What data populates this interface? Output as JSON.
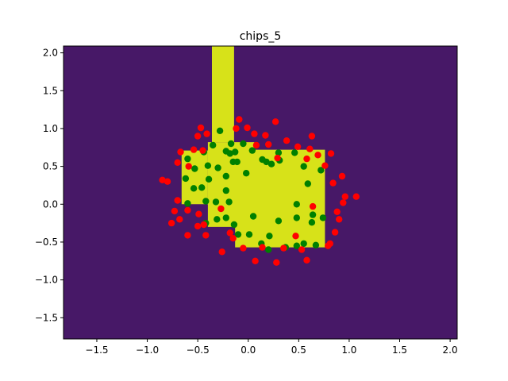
{
  "chart_data": {
    "type": "scatter",
    "title": "chips_5",
    "xlabel": "",
    "ylabel": "",
    "xlim": [
      -1.83,
      2.07
    ],
    "ylim": [
      -1.78,
      2.09
    ],
    "x_ticks": [
      -1.5,
      -1.0,
      -0.5,
      0.0,
      0.5,
      1.0,
      1.5,
      2.0
    ],
    "x_tick_labels": [
      "−1.5",
      "−1.0",
      "−0.5",
      "0.0",
      "0.5",
      "1.0",
      "1.5",
      "2.0"
    ],
    "y_ticks": [
      -1.5,
      -1.0,
      -0.5,
      0.0,
      0.5,
      1.0,
      1.5,
      2.0
    ],
    "y_tick_labels": [
      "−1.5",
      "−1.0",
      "−0.5",
      "0.0",
      "0.5",
      "1.0",
      "1.5",
      "2.0"
    ],
    "grid": false,
    "legend": "none",
    "background_color": "#471867",
    "region_color": "#d7e219",
    "decision_regions": [
      [
        [
          -0.36,
          2.09
        ],
        [
          -0.14,
          2.09
        ],
        [
          -0.14,
          0.82
        ],
        [
          -0.36,
          0.82
        ]
      ],
      [
        [
          -0.4,
          0.82
        ],
        [
          0.06,
          0.82
        ],
        [
          0.06,
          0.72
        ],
        [
          0.76,
          0.72
        ],
        [
          0.76,
          -0.57
        ],
        [
          -0.13,
          -0.57
        ],
        [
          -0.13,
          -0.3
        ],
        [
          -0.4,
          -0.3
        ]
      ],
      [
        [
          -0.66,
          0.71
        ],
        [
          -0.4,
          0.71
        ],
        [
          -0.4,
          0.0
        ],
        [
          -0.66,
          0.0
        ]
      ]
    ],
    "series": [
      {
        "color": "#008000",
        "points": [
          [
            -0.28,
            0.97
          ],
          [
            -0.22,
            0.7
          ],
          [
            -0.18,
            0.67
          ],
          [
            -0.13,
            0.69
          ],
          [
            -0.17,
            0.8
          ],
          [
            -0.05,
            0.8
          ],
          [
            0.04,
            0.71
          ],
          [
            -0.35,
            0.78
          ],
          [
            -0.6,
            0.6
          ],
          [
            -0.53,
            0.47
          ],
          [
            -0.44,
            0.69
          ],
          [
            -0.4,
            0.51
          ],
          [
            -0.3,
            0.48
          ],
          [
            -0.22,
            0.37
          ],
          [
            -0.15,
            0.56
          ],
          [
            -0.11,
            0.56
          ],
          [
            -0.02,
            0.41
          ],
          [
            0.14,
            0.59
          ],
          [
            0.18,
            0.56
          ],
          [
            0.23,
            0.53
          ],
          [
            0.3,
            0.68
          ],
          [
            0.46,
            0.68
          ],
          [
            0.31,
            0.58
          ],
          [
            0.55,
            0.5
          ],
          [
            0.72,
            0.45
          ],
          [
            0.59,
            0.27
          ],
          [
            -0.62,
            0.34
          ],
          [
            -0.54,
            0.21
          ],
          [
            -0.46,
            0.22
          ],
          [
            -0.39,
            0.33
          ],
          [
            -0.22,
            0.18
          ],
          [
            -0.32,
            0.03
          ],
          [
            -0.42,
            0.04
          ],
          [
            -0.6,
            0.01
          ],
          [
            -0.22,
            -0.18
          ],
          [
            -0.31,
            -0.2
          ],
          [
            -0.42,
            -0.25
          ],
          [
            -0.14,
            -0.27
          ],
          [
            0.05,
            -0.16
          ],
          [
            0.3,
            -0.22
          ],
          [
            0.48,
            -0.18
          ],
          [
            0.64,
            -0.14
          ],
          [
            0.74,
            -0.18
          ],
          [
            0.48,
            0.0
          ],
          [
            0.63,
            -0.24
          ],
          [
            -0.1,
            -0.4
          ],
          [
            0.01,
            -0.4
          ],
          [
            0.21,
            -0.42
          ],
          [
            0.37,
            -0.57
          ],
          [
            0.48,
            -0.55
          ],
          [
            0.55,
            -0.52
          ],
          [
            0.67,
            -0.54
          ],
          [
            0.13,
            -0.52
          ],
          [
            0.2,
            -0.6
          ],
          [
            -0.19,
            0.03
          ]
        ]
      },
      {
        "color": "#ff0000",
        "points": [
          [
            -0.47,
            1.01
          ],
          [
            -0.5,
            0.9
          ],
          [
            -0.41,
            0.93
          ],
          [
            -0.12,
            1.0
          ],
          [
            -0.09,
            1.12
          ],
          [
            -0.01,
            1.01
          ],
          [
            0.06,
            0.93
          ],
          [
            0.17,
            0.91
          ],
          [
            0.27,
            1.09
          ],
          [
            0.08,
            0.78
          ],
          [
            0.2,
            0.79
          ],
          [
            0.38,
            0.84
          ],
          [
            0.49,
            0.76
          ],
          [
            0.63,
            0.9
          ],
          [
            0.61,
            0.73
          ],
          [
            0.69,
            0.65
          ],
          [
            0.82,
            0.67
          ],
          [
            0.76,
            0.51
          ],
          [
            0.84,
            0.28
          ],
          [
            0.93,
            0.37
          ],
          [
            0.96,
            0.1
          ],
          [
            0.94,
            0.02
          ],
          [
            1.07,
            0.1
          ],
          [
            -0.67,
            0.69
          ],
          [
            -0.54,
            0.72
          ],
          [
            -0.45,
            0.71
          ],
          [
            -0.7,
            0.55
          ],
          [
            -0.59,
            0.5
          ],
          [
            -0.85,
            0.32
          ],
          [
            -0.8,
            0.3
          ],
          [
            -0.7,
            0.05
          ],
          [
            -0.73,
            -0.09
          ],
          [
            -0.6,
            -0.08
          ],
          [
            -0.68,
            -0.2
          ],
          [
            -0.76,
            -0.25
          ],
          [
            -0.49,
            -0.13
          ],
          [
            -0.5,
            -0.29
          ],
          [
            -0.44,
            -0.27
          ],
          [
            -0.6,
            -0.41
          ],
          [
            -0.42,
            -0.41
          ],
          [
            -0.18,
            -0.38
          ],
          [
            -0.15,
            -0.45
          ],
          [
            -0.26,
            -0.63
          ],
          [
            -0.05,
            -0.58
          ],
          [
            0.07,
            -0.75
          ],
          [
            0.14,
            -0.57
          ],
          [
            0.28,
            -0.77
          ],
          [
            0.35,
            -0.58
          ],
          [
            0.47,
            -0.42
          ],
          [
            0.53,
            -0.6
          ],
          [
            0.58,
            -0.74
          ],
          [
            0.79,
            -0.55
          ],
          [
            0.81,
            -0.52
          ],
          [
            0.86,
            -0.37
          ],
          [
            0.9,
            -0.2
          ],
          [
            0.88,
            -0.1
          ],
          [
            0.64,
            -0.03
          ],
          [
            0.58,
            0.6
          ],
          [
            0.29,
            0.61
          ],
          [
            -0.27,
            -0.06
          ]
        ]
      }
    ]
  }
}
